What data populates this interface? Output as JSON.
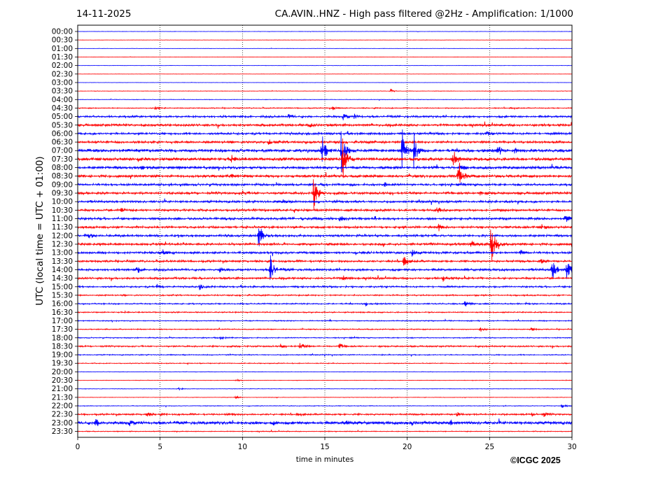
{
  "header": {
    "date": "14-11-2025",
    "title": "CA.AVIN..HNZ - High pass filtered @2Hz - Amplification: 1/1000"
  },
  "footer": {
    "copyright": "©ICGC 2025"
  },
  "chart_data": {
    "type": "line",
    "title": "CA.AVIN..HNZ - High pass filtered @2Hz - Amplification: 1/1000",
    "xlabel": "time in minutes",
    "ylabel": "UTC (local time = UTC + 01:00)",
    "xlim": [
      0,
      30
    ],
    "xticks": [
      0,
      5,
      10,
      15,
      20,
      25,
      30
    ],
    "rows": [
      "00:00",
      "00:30",
      "01:00",
      "01:30",
      "02:00",
      "02:30",
      "03:00",
      "03:30",
      "04:00",
      "04:30",
      "05:00",
      "05:30",
      "06:00",
      "06:30",
      "07:00",
      "07:30",
      "08:00",
      "08:30",
      "09:00",
      "09:30",
      "10:00",
      "10:30",
      "11:00",
      "11:30",
      "12:00",
      "12:30",
      "13:00",
      "13:30",
      "14:00",
      "14:30",
      "15:00",
      "15:30",
      "16:00",
      "16:30",
      "17:00",
      "17:30",
      "18:00",
      "18:30",
      "19:00",
      "19:30",
      "20:00",
      "20:30",
      "21:00",
      "21:30",
      "22:00",
      "22:30",
      "23:00",
      "23:30"
    ],
    "row_colors": [
      "#0000ff",
      "#ff0000"
    ],
    "grid": "vertical dotted at every 5 minutes",
    "row_noise": [
      0.2,
      0.2,
      0.2,
      0.2,
      0.2,
      0.2,
      0.2,
      0.3,
      0.3,
      0.6,
      1.2,
      1.4,
      1.3,
      1.4,
      1.8,
      1.8,
      1.6,
      1.5,
      1.3,
      1.4,
      1.3,
      1.3,
      1.4,
      1.3,
      1.3,
      1.4,
      1.3,
      1.2,
      1.3,
      1.2,
      1.0,
      0.8,
      0.8,
      0.7,
      0.6,
      0.6,
      0.6,
      0.9,
      0.6,
      0.5,
      0.3,
      0.3,
      0.3,
      0.3,
      0.4,
      1.0,
      1.8,
      0.5
    ],
    "events": [
      {
        "row": "03:30",
        "minute": 19.0,
        "amplitude": 3
      },
      {
        "row": "04:30",
        "minute": 4.7,
        "amplitude": 3
      },
      {
        "row": "04:30",
        "minute": 15.5,
        "amplitude": 3
      },
      {
        "row": "05:00",
        "minute": 12.8,
        "amplitude": 3
      },
      {
        "row": "05:00",
        "minute": 16.1,
        "amplitude": 5
      },
      {
        "row": "05:00",
        "minute": 16.8,
        "amplitude": 3
      },
      {
        "row": "05:30",
        "minute": 14.1,
        "amplitude": 3
      },
      {
        "row": "06:00",
        "minute": 24.8,
        "amplitude": 3
      },
      {
        "row": "06:30",
        "minute": 11.6,
        "amplitude": 3
      },
      {
        "row": "07:00",
        "minute": 14.8,
        "amplitude": 28
      },
      {
        "row": "07:00",
        "minute": 16.0,
        "amplitude": 32
      },
      {
        "row": "07:00",
        "minute": 19.7,
        "amplitude": 30
      },
      {
        "row": "07:00",
        "minute": 20.4,
        "amplitude": 26
      },
      {
        "row": "07:00",
        "minute": 25.5,
        "amplitude": 10
      },
      {
        "row": "07:00",
        "minute": 26.5,
        "amplitude": 4
      },
      {
        "row": "07:30",
        "minute": 16.1,
        "amplitude": 30
      },
      {
        "row": "07:30",
        "minute": 22.8,
        "amplitude": 12
      },
      {
        "row": "07:30",
        "minute": 9.3,
        "amplitude": 3
      },
      {
        "row": "08:00",
        "minute": 3.9,
        "amplitude": 3
      },
      {
        "row": "08:00",
        "minute": 6.1,
        "amplitude": 3
      },
      {
        "row": "08:00",
        "minute": 23.2,
        "amplitude": 8
      },
      {
        "row": "08:30",
        "minute": 9.3,
        "amplitude": 4
      },
      {
        "row": "08:30",
        "minute": 23.1,
        "amplitude": 26
      },
      {
        "row": "09:00",
        "minute": 18.6,
        "amplitude": 4
      },
      {
        "row": "09:30",
        "minute": 14.3,
        "amplitude": 28
      },
      {
        "row": "09:30",
        "minute": 10.0,
        "amplitude": 4
      },
      {
        "row": "09:30",
        "minute": 24.4,
        "amplitude": 4
      },
      {
        "row": "10:00",
        "minute": 12.5,
        "amplitude": 3
      },
      {
        "row": "10:30",
        "minute": 2.6,
        "amplitude": 4
      },
      {
        "row": "10:30",
        "minute": 21.8,
        "amplitude": 4
      },
      {
        "row": "11:00",
        "minute": 15.9,
        "amplitude": 5
      },
      {
        "row": "11:00",
        "minute": 18.0,
        "amplitude": 4
      },
      {
        "row": "11:00",
        "minute": 29.6,
        "amplitude": 6
      },
      {
        "row": "11:30",
        "minute": 21.9,
        "amplitude": 5
      },
      {
        "row": "11:30",
        "minute": 28.2,
        "amplitude": 4
      },
      {
        "row": "12:00",
        "minute": 11.0,
        "amplitude": 22
      },
      {
        "row": "12:00",
        "minute": 0.7,
        "amplitude": 3
      },
      {
        "row": "12:30",
        "minute": 25.1,
        "amplitude": 36
      },
      {
        "row": "12:30",
        "minute": 23.9,
        "amplitude": 5
      },
      {
        "row": "13:00",
        "minute": 5.2,
        "amplitude": 5
      },
      {
        "row": "13:00",
        "minute": 20.3,
        "amplitude": 4
      },
      {
        "row": "13:00",
        "minute": 26.9,
        "amplitude": 4
      },
      {
        "row": "13:30",
        "minute": 19.8,
        "amplitude": 6
      },
      {
        "row": "13:30",
        "minute": 28.1,
        "amplitude": 4
      },
      {
        "row": "14:00",
        "minute": 11.7,
        "amplitude": 24
      },
      {
        "row": "14:00",
        "minute": 3.6,
        "amplitude": 5
      },
      {
        "row": "14:00",
        "minute": 8.6,
        "amplitude": 4
      },
      {
        "row": "14:00",
        "minute": 28.8,
        "amplitude": 18
      },
      {
        "row": "14:00",
        "minute": 29.7,
        "amplitude": 18
      },
      {
        "row": "14:30",
        "minute": 16.1,
        "amplitude": 4
      },
      {
        "row": "14:30",
        "minute": 22.2,
        "amplitude": 4
      },
      {
        "row": "15:00",
        "minute": 4.8,
        "amplitude": 3
      },
      {
        "row": "15:00",
        "minute": 7.4,
        "amplitude": 4
      },
      {
        "row": "16:00",
        "minute": 17.5,
        "amplitude": 3
      },
      {
        "row": "16:00",
        "minute": 23.5,
        "amplitude": 5
      },
      {
        "row": "17:30",
        "minute": 24.4,
        "amplitude": 4
      },
      {
        "row": "17:30",
        "minute": 27.5,
        "amplitude": 3
      },
      {
        "row": "18:00",
        "minute": 8.7,
        "amplitude": 3
      },
      {
        "row": "18:30",
        "minute": 13.5,
        "amplitude": 6
      },
      {
        "row": "18:30",
        "minute": 15.9,
        "amplitude": 4
      },
      {
        "row": "18:30",
        "minute": 12.3,
        "amplitude": 3
      },
      {
        "row": "20:30",
        "minute": 9.6,
        "amplitude": 2
      },
      {
        "row": "21:00",
        "minute": 6.1,
        "amplitude": 2
      },
      {
        "row": "21:30",
        "minute": 9.6,
        "amplitude": 2
      },
      {
        "row": "22:00",
        "minute": 29.4,
        "amplitude": 3
      },
      {
        "row": "22:30",
        "minute": 4.2,
        "amplitude": 3
      },
      {
        "row": "22:30",
        "minute": 9.1,
        "amplitude": 3
      },
      {
        "row": "22:30",
        "minute": 23.0,
        "amplitude": 4
      },
      {
        "row": "22:30",
        "minute": 27.6,
        "amplitude": 3
      },
      {
        "row": "22:30",
        "minute": 28.3,
        "amplitude": 3
      },
      {
        "row": "23:00",
        "minute": 1.1,
        "amplitude": 6
      },
      {
        "row": "23:00",
        "minute": 3.1,
        "amplitude": 5
      },
      {
        "row": "23:00",
        "minute": 11.8,
        "amplitude": 4
      },
      {
        "row": "23:00",
        "minute": 16.3,
        "amplitude": 3
      },
      {
        "row": "23:00",
        "minute": 20.3,
        "amplitude": 3
      },
      {
        "row": "23:00",
        "minute": 22.6,
        "amplitude": 3
      }
    ]
  }
}
